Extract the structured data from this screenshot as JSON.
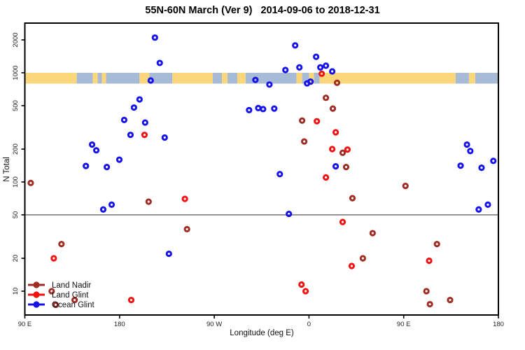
{
  "title": "55N-60N March (Ver 9)   2014-09-06 to 2018-12-31",
  "legend": {
    "items": [
      {
        "label": "Land Nadir",
        "color": "#A02C24"
      },
      {
        "label": "Land Glint",
        "color": "#F51111"
      },
      {
        "label": "Ocean Glint",
        "color": "#1512EC"
      }
    ]
  },
  "colors": {
    "band_land": "#FBD77C",
    "band_ocean": "#A7BBD7",
    "axis": "#000000",
    "hline": "#444444",
    "tick_text": "#222222"
  },
  "chart_data": {
    "type": "scatter",
    "title": "55N-60N March (Ver 9)   2014-09-06 to 2018-12-31",
    "xlabel": "Longitude (deg E)",
    "ylabel": "N Total",
    "y_scale": "log",
    "ylim": [
      6,
      2500
    ],
    "x_span_deg": 450,
    "x_axis_note": "axis runs 90E eastward wrapping to 180; u = degrees east of 90E",
    "x_ticks": [
      {
        "u": 0,
        "label": "90 E"
      },
      {
        "u": 90,
        "label": "180"
      },
      {
        "u": 180,
        "label": "90 W"
      },
      {
        "u": 270,
        "label": "0"
      },
      {
        "u": 360,
        "label": "90 E"
      },
      {
        "u": 450,
        "label": "180"
      }
    ],
    "y_ticks": [
      10,
      20,
      50,
      100,
      200,
      500,
      1000,
      2000
    ],
    "hline": 50,
    "grid": false,
    "legend_position": "bottom-left",
    "series": [
      {
        "name": "Land Nadir",
        "color": "#A02C24",
        "points": [
          [
            5.6,
            98
          ],
          [
            117.6,
            66
          ],
          [
            34.8,
            27
          ],
          [
            154.1,
            37
          ],
          [
            296.7,
            810
          ],
          [
            286.1,
            590
          ],
          [
            292.7,
            470
          ],
          [
            263.5,
            365
          ],
          [
            265.5,
            235
          ],
          [
            302,
            185
          ],
          [
            305.3,
            137
          ],
          [
            311.3,
            71
          ],
          [
            361.7,
            92
          ],
          [
            330.5,
            34
          ],
          [
            321.2,
            20
          ],
          [
            391.6,
            27
          ],
          [
            381.6,
            10
          ],
          [
            404.1,
            8.3
          ],
          [
            384.9,
            7.6
          ],
          [
            25.5,
            10
          ],
          [
            47.3,
            8.3
          ],
          [
            29.4,
            7.5
          ]
        ]
      },
      {
        "name": "Land Glint",
        "color": "#F51111",
        "points": [
          [
            113.7,
            270
          ],
          [
            282.1,
            980
          ],
          [
            277.5,
            360
          ],
          [
            295.4,
            285
          ],
          [
            292.1,
            200
          ],
          [
            306.6,
            198
          ],
          [
            286.1,
            110
          ],
          [
            302,
            43
          ],
          [
            152.1,
            70
          ],
          [
            27.5,
            20
          ],
          [
            310.6,
            17
          ],
          [
            384.2,
            19
          ],
          [
            262.9,
            11.5
          ],
          [
            266.8,
            10
          ],
          [
            101.1,
            8.3
          ]
        ]
      },
      {
        "name": "Ocean Glint",
        "color": "#1512EC",
        "points": [
          [
            123.6,
            2100
          ],
          [
            128.2,
            1230
          ],
          [
            119.6,
            850
          ],
          [
            109,
            570
          ],
          [
            103.7,
            480
          ],
          [
            94.4,
            370
          ],
          [
            114.3,
            350
          ],
          [
            100.4,
            270
          ],
          [
            132.9,
            255
          ],
          [
            63.9,
            220
          ],
          [
            67.9,
            195
          ],
          [
            89.8,
            160
          ],
          [
            58,
            140
          ],
          [
            77.9,
            137
          ],
          [
            74.5,
            56
          ],
          [
            82.5,
            62
          ],
          [
            136.9,
            22
          ],
          [
            256.9,
            1780
          ],
          [
            276.8,
            1400
          ],
          [
            260.9,
            1120
          ],
          [
            247.6,
            1060
          ],
          [
            280.8,
            1120
          ],
          [
            286.1,
            1160
          ],
          [
            292.1,
            1030
          ],
          [
            268.2,
            800
          ],
          [
            271.5,
            830
          ],
          [
            219.1,
            860
          ],
          [
            232.4,
            780
          ],
          [
            213.1,
            455
          ],
          [
            221.8,
            475
          ],
          [
            226.4,
            465
          ],
          [
            237,
            470
          ],
          [
            242.3,
            118
          ],
          [
            250.9,
            51
          ],
          [
            295.4,
            139
          ],
          [
            420.1,
            220
          ],
          [
            423.3,
            192
          ],
          [
            445.2,
            156
          ],
          [
            414.1,
            141
          ],
          [
            434,
            135
          ],
          [
            440,
            62
          ],
          [
            431.3,
            56
          ]
        ]
      }
    ],
    "map_band": {
      "center_value": 900,
      "land_color": "#FBD77C",
      "ocean_color": "#A7BBD7",
      "segments": [
        {
          "f": 0,
          "t": 49.3,
          "k": "land"
        },
        {
          "f": 49.3,
          "t": 64.6,
          "k": "ocean"
        },
        {
          "f": 64.6,
          "t": 69.2,
          "k": "land"
        },
        {
          "f": 69.2,
          "t": 73.2,
          "k": "ocean"
        },
        {
          "f": 73.2,
          "t": 77.2,
          "k": "land"
        },
        {
          "f": 77.2,
          "t": 109,
          "k": "ocean"
        },
        {
          "f": 109,
          "t": 118.3,
          "k": "land"
        },
        {
          "f": 118.3,
          "t": 140.2,
          "k": "ocean"
        },
        {
          "f": 140.2,
          "t": 178.6,
          "k": "land"
        },
        {
          "f": 178.6,
          "t": 187.3,
          "k": "ocean"
        },
        {
          "f": 187.3,
          "t": 192.6,
          "k": "land"
        },
        {
          "f": 192.6,
          "t": 201.9,
          "k": "ocean"
        },
        {
          "f": 201.9,
          "t": 209.8,
          "k": "land"
        },
        {
          "f": 209.8,
          "t": 258.2,
          "k": "ocean"
        },
        {
          "f": 258.2,
          "t": 263.5,
          "k": "land"
        },
        {
          "f": 263.5,
          "t": 270.1,
          "k": "ocean"
        },
        {
          "f": 270.1,
          "t": 274.8,
          "k": "land"
        },
        {
          "f": 274.8,
          "t": 280.1,
          "k": "ocean"
        },
        {
          "f": 280.1,
          "t": 409.4,
          "k": "land"
        },
        {
          "f": 409.4,
          "t": 422,
          "k": "ocean"
        },
        {
          "f": 422,
          "t": 428,
          "k": "land"
        },
        {
          "f": 428,
          "t": 450,
          "k": "ocean"
        }
      ]
    }
  }
}
